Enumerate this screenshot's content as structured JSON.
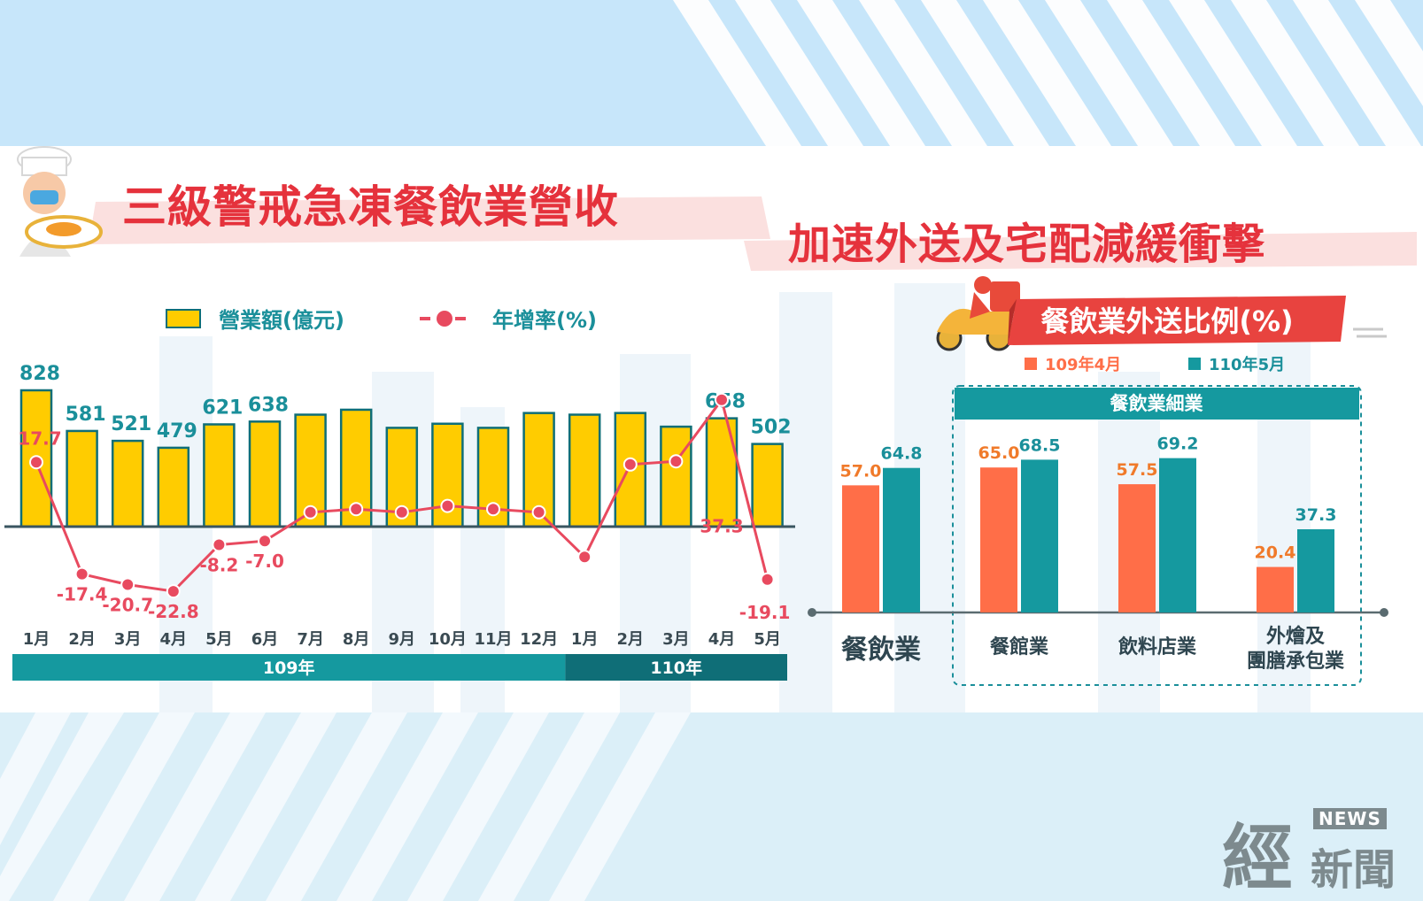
{
  "header": {
    "title_left": "三級警戒急凍餐飲業營收",
    "title_right": "加速外送及宅配減緩衝擊"
  },
  "logo": {
    "big": "經",
    "news": "NEWS",
    "small": "新聞"
  },
  "colors": {
    "bar_yellow": "#ffcc00",
    "line_red": "#e84a5f",
    "teal": "#15999f",
    "orange": "#ff6e48",
    "dark_teal": "#0f6e77"
  },
  "chart_data": [
    {
      "type": "bar",
      "legend": {
        "bar_label": "營業額(億元)",
        "line_label": "年增率(%)"
      },
      "categories": [
        "1月",
        "2月",
        "3月",
        "4月",
        "5月",
        "6月",
        "7月",
        "8月",
        "9月",
        "10月",
        "11月",
        "12月",
        "1月",
        "2月",
        "3月",
        "4月",
        "5月"
      ],
      "year_groups": [
        {
          "label": "109年",
          "count": 12
        },
        {
          "label": "110年",
          "count": 5
        }
      ],
      "series": [
        {
          "name": "營業額(億元)",
          "type": "bar",
          "values": [
            828,
            581,
            521,
            479,
            621,
            638,
            680,
            710,
            600,
            625,
            600,
            690,
            680,
            690,
            607,
            658,
            502
          ],
          "labels": [
            "828",
            "581",
            "521",
            "479",
            "621",
            "638",
            "",
            "",
            "",
            "",
            "",
            "",
            "",
            "",
            "",
            "658",
            "502"
          ]
        },
        {
          "name": "年增率(%)",
          "type": "line",
          "values": [
            17.7,
            -17.4,
            -20.7,
            -22.8,
            -8.2,
            -7.0,
            2.0,
            3.0,
            2.0,
            4.0,
            3.0,
            2.0,
            -12.0,
            17.0,
            18.0,
            37.3,
            -19.1
          ],
          "labels": [
            "17.7",
            "-17.4",
            "-20.7",
            "-22.8",
            "-8.2",
            "-7.0",
            "",
            "",
            "",
            "",
            "",
            "",
            "",
            "",
            "",
            "37.3",
            "-19.1"
          ]
        }
      ]
    },
    {
      "type": "bar",
      "title": "餐飲業外送比例(%)",
      "subgroup_title": "餐飲業細業",
      "categories": [
        "餐飲業",
        "餐館業",
        "飲料店業",
        "外燴及\n團膳承包業"
      ],
      "series": [
        {
          "name": "109年4月",
          "values": [
            57.0,
            65.0,
            57.5,
            20.4
          ],
          "labels": [
            "57.0",
            "65.0",
            "57.5",
            "20.4"
          ]
        },
        {
          "name": "110年5月",
          "values": [
            64.8,
            68.5,
            69.2,
            37.3
          ],
          "labels": [
            "64.8",
            "68.5",
            "69.2",
            "37.3"
          ]
        }
      ]
    }
  ]
}
